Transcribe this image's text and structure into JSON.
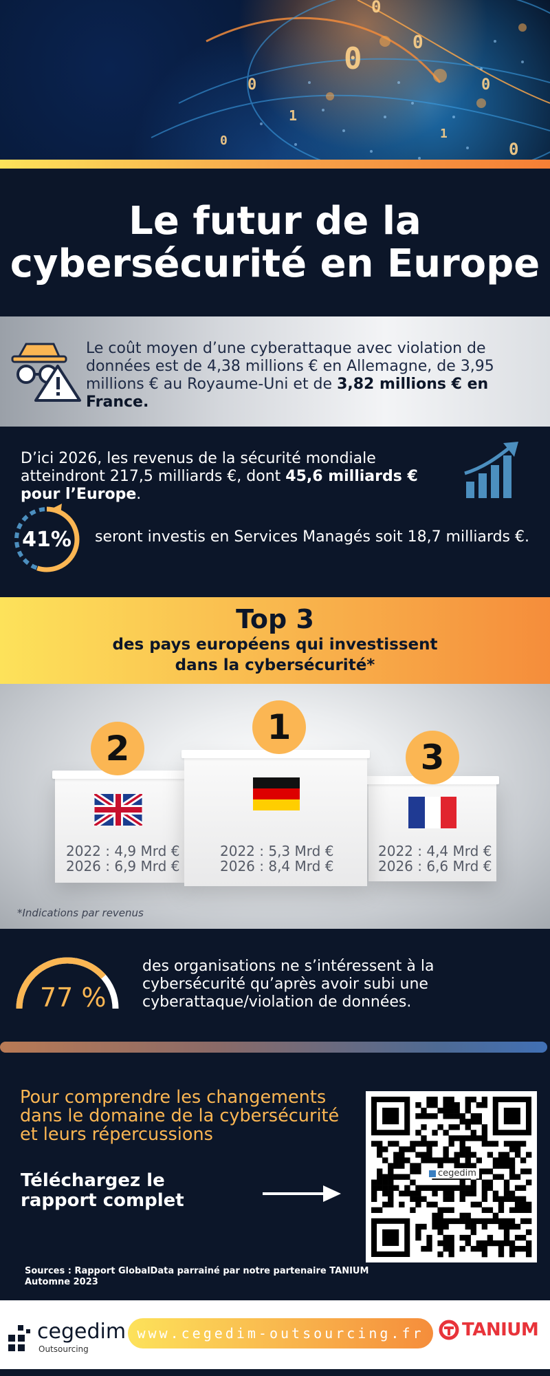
{
  "colors": {
    "navy": "#0c1629",
    "accent_orange": "#fbb653",
    "gradient_yellow": "#fde25a",
    "gradient_orange": "#f58d3b",
    "tanium_red": "#e8333a"
  },
  "hero": {
    "image": "digital-globe-binary-code"
  },
  "title": {
    "line1": "Le futur de la",
    "line2": "cybersécurité en Europe"
  },
  "cost": {
    "icon": "spy-warning-icon",
    "text_part1": "Le coût moyen d’une cyberattaque avec violation de données est de 4,38 millions € en Allemagne, de 3,95 millions € au Royaume-Uni et de ",
    "text_bold": "3,82 millions € en France."
  },
  "revenue": {
    "text_part1": "D’ici 2026, les revenus de la sécurité mondiale atteindront 217,5 milliards €, dont ",
    "text_bold": "45,6 milliards € pour l’Europe",
    "text_end": ".",
    "icon": "growth-chart-icon",
    "managed_percent": "41%",
    "managed_fraction": 0.41,
    "managed_text": "seront investis en Services Managés soit 18,7 milliards €."
  },
  "top3": {
    "title": "Top 3",
    "subtitle_line1": "des pays européens qui investissent",
    "subtitle_line2": "dans  la cybersécurité*"
  },
  "podium": {
    "countries": [
      {
        "rank": "1",
        "flag": "germany-flag",
        "line2022": "2022 : 5,3 Mrd €",
        "line2026": "2026 : 8,4 Mrd €"
      },
      {
        "rank": "2",
        "flag": "uk-flag",
        "line2022": "2022 : 4,9 Mrd €",
        "line2026": "2026 : 6,9 Mrd €"
      },
      {
        "rank": "3",
        "flag": "france-flag",
        "line2022": "2022 : 4,4 Mrd €",
        "line2026": "2026 : 6,6 Mrd €"
      }
    ],
    "footnote": "*Indications par revenus"
  },
  "stat77": {
    "percent": "77 %",
    "fraction": 0.77,
    "text": "des organisations ne s’intéressent à la cybersécurité qu’après avoir subi une cyberattaque/violation de données."
  },
  "cta": {
    "text": "Pour comprendre les changements dans le domaine de la cybersécurité et leurs répercussions",
    "download_line1": "Téléchargez le",
    "download_line2": "rapport complet",
    "qr_logo": "cegedim",
    "sources_line1": "Sources : Rapport GlobalData parrainé par notre partenaire TANIUM",
    "sources_line2": "Automne 2023"
  },
  "footer": {
    "brand": "cegedim",
    "brand_sub": "Outsourcing",
    "url": "www.cegedim-outsourcing.fr",
    "partner": "TANIUM"
  }
}
